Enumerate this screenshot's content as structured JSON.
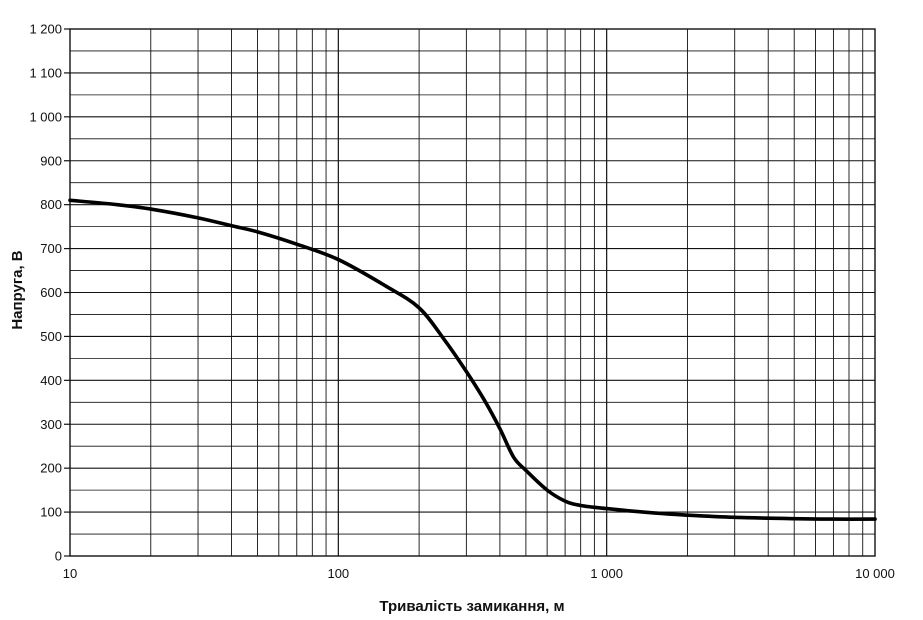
{
  "chart_data": {
    "type": "line",
    "title": "",
    "xlabel": "Тривалість замикання, м",
    "ylabel": "Напруга, В",
    "x_scale": "log",
    "xlim": [
      10,
      10000
    ],
    "ylim": [
      0,
      1200
    ],
    "grid": true,
    "x_ticks": [
      {
        "value": 10,
        "label": "10"
      },
      {
        "value": 100,
        "label": "100"
      },
      {
        "value": 1000,
        "label": "1 000"
      },
      {
        "value": 10000,
        "label": "10 000"
      }
    ],
    "y_ticks": [
      {
        "value": 0,
        "label": "0"
      },
      {
        "value": 100,
        "label": "100"
      },
      {
        "value": 200,
        "label": "200"
      },
      {
        "value": 300,
        "label": "300"
      },
      {
        "value": 400,
        "label": "400"
      },
      {
        "value": 500,
        "label": "500"
      },
      {
        "value": 600,
        "label": "600"
      },
      {
        "value": 700,
        "label": "700"
      },
      {
        "value": 800,
        "label": "800"
      },
      {
        "value": 900,
        "label": "900"
      },
      {
        "value": 1000,
        "label": "1 000"
      },
      {
        "value": 1100,
        "label": "1 100"
      },
      {
        "value": 1200,
        "label": "1 200"
      }
    ],
    "series": [
      {
        "color": "#000000",
        "x": [
          10,
          15,
          20,
          30,
          40,
          50,
          70,
          100,
          150,
          200,
          250,
          300,
          350,
          400,
          450,
          500,
          600,
          700,
          800,
          1000,
          1500,
          2000,
          3000,
          5000,
          7000,
          10000
        ],
        "y": [
          810,
          800,
          790,
          770,
          752,
          738,
          710,
          675,
          615,
          565,
          490,
          420,
          355,
          290,
          225,
          195,
          150,
          125,
          115,
          108,
          98,
          93,
          88,
          85,
          84,
          84
        ]
      }
    ]
  }
}
